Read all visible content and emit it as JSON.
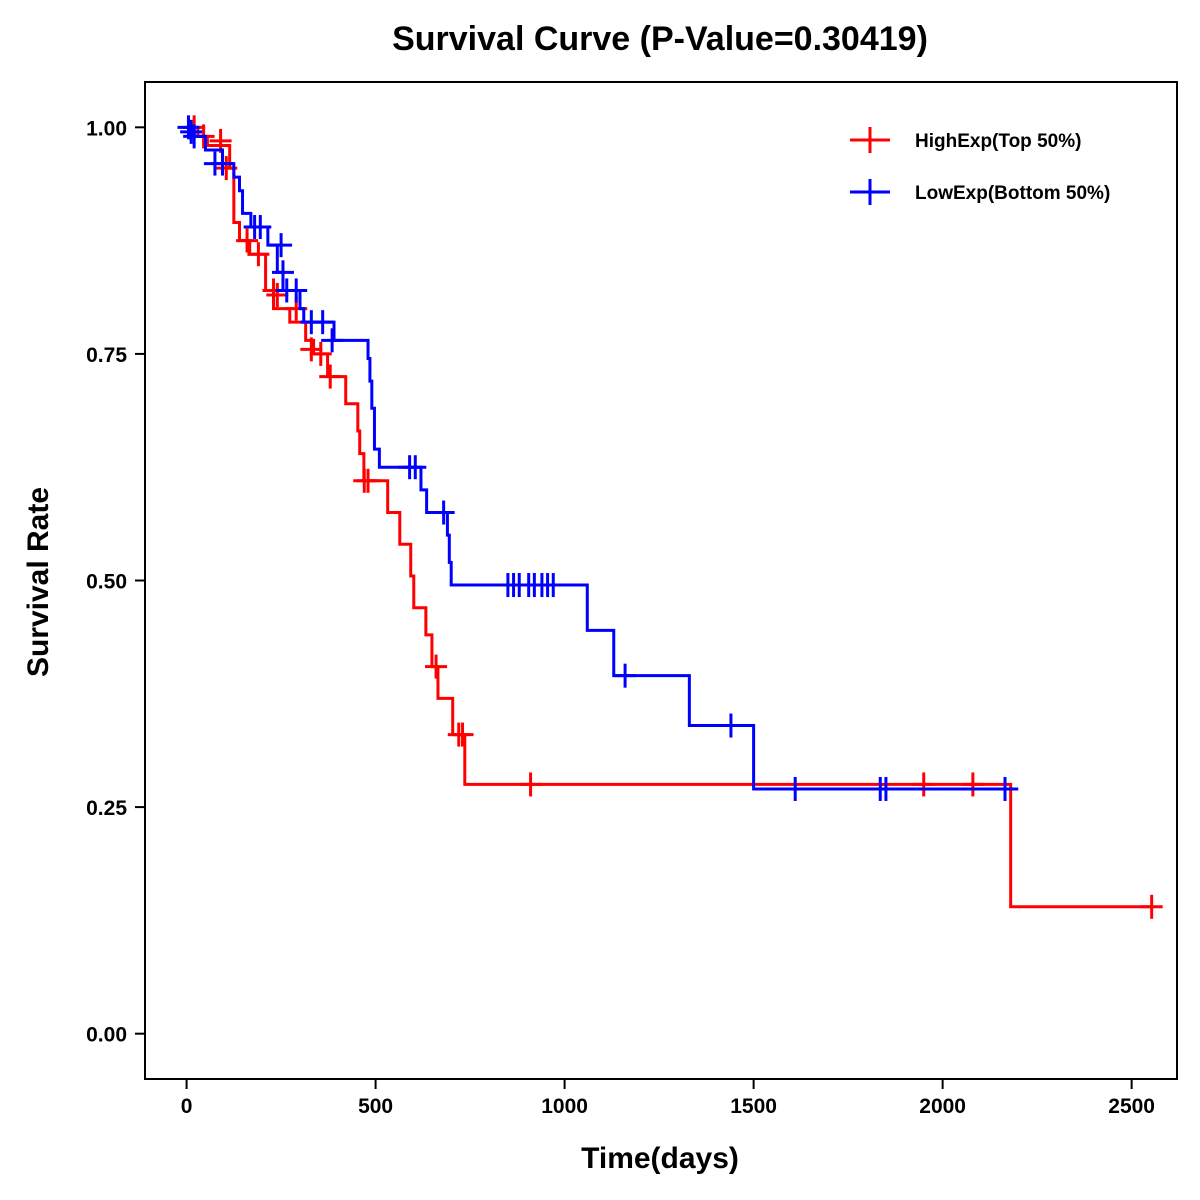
{
  "chart_data": {
    "type": "line",
    "subtype": "kaplan-meier step",
    "title": "Survival Curve (P-Value=0.30419)",
    "xlabel": "Time(days)",
    "ylabel": "Survival Rate",
    "xlim": [
      -110,
      2620
    ],
    "ylim": [
      -0.05,
      1.05
    ],
    "xticks": [
      0,
      500,
      1000,
      1500,
      2000,
      2500
    ],
    "xtick_labels": [
      "0",
      "500",
      "1000",
      "1500",
      "2000",
      "2500"
    ],
    "yticks": [
      0.0,
      0.25,
      0.5,
      0.75,
      1.0
    ],
    "ytick_labels": [
      "0.00",
      "0.25",
      "0.50",
      "0.75",
      "1.00"
    ],
    "grid": false,
    "legend": {
      "position": "top-right"
    },
    "series": [
      {
        "name": "HighExp(Top 50%)",
        "color": "#ff0000",
        "steps": [
          [
            0,
            1.0
          ],
          [
            30,
            0.99
          ],
          [
            55,
            0.98
          ],
          [
            114,
            0.955
          ],
          [
            125,
            0.895
          ],
          [
            140,
            0.875
          ],
          [
            167,
            0.86
          ],
          [
            209,
            0.82
          ],
          [
            230,
            0.8
          ],
          [
            273,
            0.785
          ],
          [
            315,
            0.765
          ],
          [
            336,
            0.75
          ],
          [
            373,
            0.725
          ],
          [
            421,
            0.695
          ],
          [
            453,
            0.665
          ],
          [
            458,
            0.64
          ],
          [
            469,
            0.61
          ],
          [
            532,
            0.575
          ],
          [
            564,
            0.54
          ],
          [
            593,
            0.505
          ],
          [
            601,
            0.47
          ],
          [
            633,
            0.44
          ],
          [
            649,
            0.405
          ],
          [
            665,
            0.37
          ],
          [
            704,
            0.33
          ],
          [
            736,
            0.275
          ],
          [
            2180,
            0.14
          ],
          [
            2553,
            0.14
          ]
        ],
        "censored": [
          [
            20,
            1.0
          ],
          [
            45,
            0.99
          ],
          [
            90,
            0.985
          ],
          [
            105,
            0.955
          ],
          [
            160,
            0.875
          ],
          [
            190,
            0.86
          ],
          [
            230,
            0.82
          ],
          [
            240,
            0.815
          ],
          [
            290,
            0.8
          ],
          [
            330,
            0.755
          ],
          [
            355,
            0.75
          ],
          [
            380,
            0.725
          ],
          [
            470,
            0.61
          ],
          [
            480,
            0.61
          ],
          [
            660,
            0.405
          ],
          [
            720,
            0.33
          ],
          [
            730,
            0.33
          ],
          [
            910,
            0.275
          ],
          [
            1950,
            0.275
          ],
          [
            2080,
            0.275
          ],
          [
            2553,
            0.14
          ]
        ]
      },
      {
        "name": "LowExp(Bottom 50%)",
        "color": "#0000ff",
        "steps": [
          [
            0,
            1.0
          ],
          [
            20,
            0.99
          ],
          [
            50,
            0.975
          ],
          [
            95,
            0.96
          ],
          [
            125,
            0.945
          ],
          [
            140,
            0.93
          ],
          [
            148,
            0.905
          ],
          [
            170,
            0.89
          ],
          [
            215,
            0.87
          ],
          [
            240,
            0.84
          ],
          [
            255,
            0.82
          ],
          [
            300,
            0.8
          ],
          [
            310,
            0.785
          ],
          [
            390,
            0.765
          ],
          [
            460,
            0.765
          ],
          [
            480,
            0.745
          ],
          [
            485,
            0.72
          ],
          [
            490,
            0.69
          ],
          [
            497,
            0.645
          ],
          [
            510,
            0.625
          ],
          [
            620,
            0.6
          ],
          [
            635,
            0.575
          ],
          [
            690,
            0.55
          ],
          [
            695,
            0.52
          ],
          [
            700,
            0.495
          ],
          [
            1060,
            0.445
          ],
          [
            1130,
            0.395
          ],
          [
            1330,
            0.34
          ],
          [
            1500,
            0.27
          ],
          [
            2200,
            0.27
          ]
        ],
        "censored": [
          [
            5,
            1.0
          ],
          [
            12,
            0.995
          ],
          [
            20,
            0.99
          ],
          [
            75,
            0.96
          ],
          [
            95,
            0.96
          ],
          [
            180,
            0.89
          ],
          [
            195,
            0.89
          ],
          [
            250,
            0.87
          ],
          [
            255,
            0.84
          ],
          [
            265,
            0.82
          ],
          [
            290,
            0.82
          ],
          [
            330,
            0.785
          ],
          [
            360,
            0.785
          ],
          [
            385,
            0.765
          ],
          [
            590,
            0.625
          ],
          [
            605,
            0.625
          ],
          [
            680,
            0.575
          ],
          [
            850,
            0.495
          ],
          [
            865,
            0.495
          ],
          [
            880,
            0.495
          ],
          [
            905,
            0.495
          ],
          [
            920,
            0.495
          ],
          [
            940,
            0.495
          ],
          [
            955,
            0.495
          ],
          [
            970,
            0.495
          ],
          [
            1160,
            0.395
          ],
          [
            1440,
            0.34
          ],
          [
            1610,
            0.27
          ],
          [
            1835,
            0.27
          ],
          [
            1850,
            0.27
          ],
          [
            2165,
            0.27
          ]
        ]
      }
    ]
  }
}
